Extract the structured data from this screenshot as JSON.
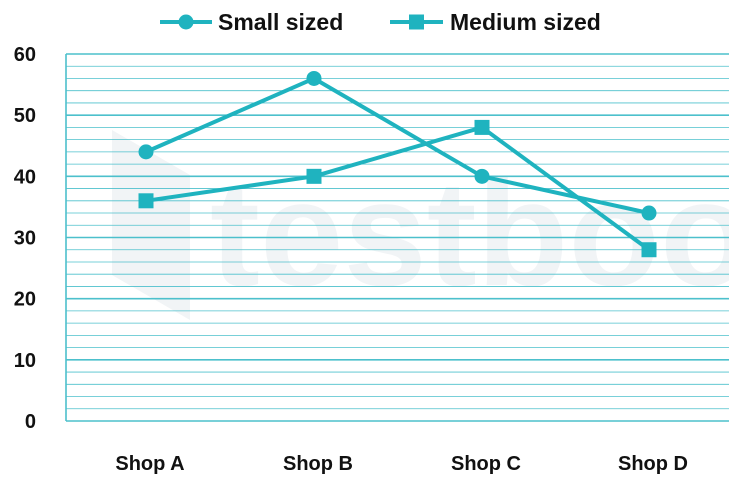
{
  "chart_data": {
    "type": "line",
    "categories": [
      "Shop A",
      "Shop B",
      "Shop C",
      "Shop D"
    ],
    "series": [
      {
        "name": "Small sized",
        "marker": "circle",
        "values": [
          44,
          56,
          40,
          34
        ]
      },
      {
        "name": "Medium sized",
        "marker": "square",
        "values": [
          36,
          40,
          48,
          28
        ]
      }
    ],
    "ylim": [
      0,
      60
    ],
    "yticks": [
      0,
      10,
      20,
      30,
      40,
      50,
      60
    ],
    "minor_grid_step": 2,
    "grid": true,
    "legend_position": "top",
    "line_color": "#1fb3bf",
    "grid_color": "#4cc0cc",
    "watermark_color": "#f1f4f6"
  }
}
